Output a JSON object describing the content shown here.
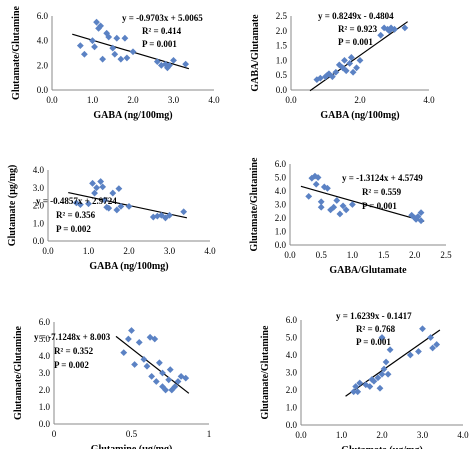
{
  "chart_data": [
    {
      "type": "scatter",
      "xlabel": "GABA (ng/100mg)",
      "ylabel": "Glutamate/Glutamine",
      "xlim": [
        0.0,
        4.0
      ],
      "ylim": [
        0.0,
        6.0
      ],
      "xticks": [
        "0.0",
        "1.0",
        "2.0",
        "3.0",
        "4.0"
      ],
      "yticks": [
        "0.0",
        "2.0",
        "4.0",
        "6.0"
      ],
      "annotations": [
        "y = -0.9703x + 5.0065",
        "R² = 0.414",
        "P = 0.001"
      ],
      "trendline": {
        "slope": -0.9703,
        "intercept": 5.0065
      },
      "marker_color": "#5b82c4",
      "grid": false,
      "points": [
        [
          0.7,
          3.6
        ],
        [
          0.8,
          2.9
        ],
        [
          1.0,
          4.0
        ],
        [
          1.05,
          3.5
        ],
        [
          1.1,
          5.5
        ],
        [
          1.15,
          5.0
        ],
        [
          1.2,
          5.2
        ],
        [
          1.25,
          2.5
        ],
        [
          1.35,
          4.6
        ],
        [
          1.4,
          4.3
        ],
        [
          1.5,
          3.4
        ],
        [
          1.55,
          2.9
        ],
        [
          1.6,
          4.2
        ],
        [
          1.7,
          2.5
        ],
        [
          1.8,
          4.2
        ],
        [
          1.85,
          2.6
        ],
        [
          2.0,
          3.1
        ],
        [
          2.6,
          2.3
        ],
        [
          2.7,
          2.0
        ],
        [
          2.8,
          2.1
        ],
        [
          2.85,
          1.8
        ],
        [
          2.9,
          2.0
        ],
        [
          3.0,
          2.4
        ],
        [
          3.3,
          2.1
        ]
      ]
    },
    {
      "type": "scatter",
      "xlabel": "GABA (ng/100mg)",
      "ylabel": "GABA/Glutamate",
      "xlim": [
        0.0,
        4.0
      ],
      "ylim": [
        0.0,
        2.5
      ],
      "xticks": [
        "0.0",
        "2.0",
        "4.0"
      ],
      "yticks": [
        "0.0",
        "0.5",
        "1.0",
        "1.5",
        "2.0",
        "2.5"
      ],
      "annotations": [
        "y = 0.8249x - 0.4804",
        "R² = 0.923",
        "P = 0.001"
      ],
      "trendline": {
        "slope": 0.8249,
        "intercept": -0.4804
      },
      "marker_color": "#5b82c4",
      "grid": false,
      "points": [
        [
          0.75,
          0.35
        ],
        [
          0.85,
          0.4
        ],
        [
          1.0,
          0.45
        ],
        [
          1.05,
          0.5
        ],
        [
          1.1,
          0.55
        ],
        [
          1.2,
          0.45
        ],
        [
          1.3,
          0.6
        ],
        [
          1.4,
          0.85
        ],
        [
          1.5,
          0.75
        ],
        [
          1.55,
          1.0
        ],
        [
          1.6,
          0.65
        ],
        [
          1.7,
          0.9
        ],
        [
          1.75,
          1.1
        ],
        [
          1.8,
          0.6
        ],
        [
          1.9,
          0.75
        ],
        [
          2.0,
          1.0
        ],
        [
          2.6,
          1.85
        ],
        [
          2.7,
          2.1
        ],
        [
          2.8,
          2.05
        ],
        [
          2.85,
          2.0
        ],
        [
          2.9,
          2.1
        ],
        [
          3.0,
          2.05
        ],
        [
          3.3,
          2.1
        ]
      ]
    },
    {
      "type": "scatter",
      "xlabel": "GABA (ng/100mg)",
      "ylabel": "Glutamate (µg/mg)",
      "xlim": [
        0.0,
        4.0
      ],
      "ylim": [
        0.0,
        4.0
      ],
      "xticks": [
        "0.0",
        "1.0",
        "2.0",
        "3.0",
        "4.0"
      ],
      "yticks": [
        "0.0",
        "1.0",
        "2.0",
        "3.0",
        "4.0"
      ],
      "annotations": [
        "y = -0.4857x + 2.9724",
        "R² = 0.356",
        "P = 0.002"
      ],
      "trendline": {
        "slope": -0.4857,
        "intercept": 2.9724
      },
      "marker_color": "#5b82c4",
      "grid": false,
      "points": [
        [
          0.7,
          2.15
        ],
        [
          0.8,
          2.05
        ],
        [
          1.0,
          2.1
        ],
        [
          1.1,
          3.25
        ],
        [
          1.15,
          2.7
        ],
        [
          1.2,
          3.0
        ],
        [
          1.3,
          3.35
        ],
        [
          1.35,
          3.05
        ],
        [
          1.4,
          2.3
        ],
        [
          1.45,
          1.9
        ],
        [
          1.5,
          1.85
        ],
        [
          1.6,
          2.7
        ],
        [
          1.7,
          1.75
        ],
        [
          1.75,
          2.95
        ],
        [
          1.8,
          1.95
        ],
        [
          2.0,
          1.95
        ],
        [
          2.6,
          1.35
        ],
        [
          2.7,
          1.4
        ],
        [
          2.8,
          1.45
        ],
        [
          2.9,
          1.3
        ],
        [
          3.0,
          1.45
        ],
        [
          3.35,
          1.65
        ]
      ]
    },
    {
      "type": "scatter",
      "xlabel": "GABA/Glutamate",
      "ylabel": "Glutamate/Glutamine",
      "xlim": [
        0.0,
        2.5
      ],
      "ylim": [
        0.0,
        6.0
      ],
      "xticks": [
        "0.0",
        "0.5",
        "1.0",
        "1.5",
        "2.0",
        "2.5"
      ],
      "yticks": [
        "0.0",
        "1.0",
        "2.0",
        "3.0",
        "4.0",
        "5.0",
        "6.0"
      ],
      "annotations": [
        "y = -1.3124x + 4.5749",
        "R² = 0.559",
        "P = 0.001"
      ],
      "trendline": {
        "slope": -1.3124,
        "intercept": 4.5749
      },
      "marker_color": "#5b82c4",
      "grid": false,
      "points": [
        [
          0.3,
          3.6
        ],
        [
          0.35,
          4.95
        ],
        [
          0.4,
          5.1
        ],
        [
          0.42,
          4.5
        ],
        [
          0.45,
          5.0
        ],
        [
          0.5,
          3.2
        ],
        [
          0.5,
          2.8
        ],
        [
          0.55,
          4.3
        ],
        [
          0.6,
          4.2
        ],
        [
          0.65,
          2.6
        ],
        [
          0.7,
          2.8
        ],
        [
          0.75,
          3.3
        ],
        [
          0.8,
          2.3
        ],
        [
          0.85,
          2.9
        ],
        [
          0.9,
          2.6
        ],
        [
          1.0,
          3.0
        ],
        [
          1.95,
          2.2
        ],
        [
          2.0,
          2.0
        ],
        [
          2.02,
          1.9
        ],
        [
          2.05,
          2.1
        ],
        [
          2.1,
          1.8
        ],
        [
          2.1,
          2.4
        ]
      ]
    },
    {
      "type": "scatter",
      "xlabel": "Glutamine (µg/mg)",
      "ylabel": "Glutamate/Glutamine",
      "xlim": [
        0.0,
        1.0
      ],
      "ylim": [
        0.0,
        6.0
      ],
      "xticks": [
        "0",
        "0.5",
        "1"
      ],
      "yticks": [
        "0.0",
        "1.0",
        "2.0",
        "3.0",
        "4.0",
        "5.0",
        "6.0"
      ],
      "annotations": [
        "y = -7.1248x + 8.003",
        "R² = 0.352",
        "P = 0.002"
      ],
      "trendline": {
        "slope": -7.1248,
        "intercept": 8.003
      },
      "marker_color": "#5b82c4",
      "grid": false,
      "points": [
        [
          0.45,
          4.2
        ],
        [
          0.48,
          5.0
        ],
        [
          0.5,
          5.5
        ],
        [
          0.52,
          3.5
        ],
        [
          0.55,
          4.8
        ],
        [
          0.58,
          3.8
        ],
        [
          0.6,
          3.4
        ],
        [
          0.62,
          5.1
        ],
        [
          0.63,
          2.8
        ],
        [
          0.65,
          5.0
        ],
        [
          0.66,
          2.5
        ],
        [
          0.68,
          3.6
        ],
        [
          0.7,
          2.2
        ],
        [
          0.7,
          3.0
        ],
        [
          0.72,
          2.0
        ],
        [
          0.74,
          2.6
        ],
        [
          0.75,
          3.2
        ],
        [
          0.76,
          2.0
        ],
        [
          0.78,
          2.2
        ],
        [
          0.8,
          2.5
        ],
        [
          0.82,
          2.8
        ],
        [
          0.85,
          2.7
        ]
      ]
    },
    {
      "type": "scatter",
      "xlabel": "Glutamate (µg/mg)",
      "ylabel": "Glutamate/Glutamine",
      "xlim": [
        0.0,
        4.0
      ],
      "ylim": [
        0.0,
        6.0
      ],
      "xticks": [
        "0.0",
        "1.0",
        "2.0",
        "3.0",
        "4.0"
      ],
      "yticks": [
        "0.0",
        "1.0",
        "2.0",
        "3.0",
        "4.0",
        "5.0",
        "6.0"
      ],
      "annotations": [
        "y = 1.6239x - 0.1417",
        "R² = 0.768",
        "P = 0.001"
      ],
      "trendline": {
        "slope": 1.6239,
        "intercept": -0.1417
      },
      "marker_color": "#5b82c4",
      "grid": false,
      "points": [
        [
          1.3,
          1.9
        ],
        [
          1.35,
          2.2
        ],
        [
          1.4,
          1.9
        ],
        [
          1.45,
          2.4
        ],
        [
          1.6,
          2.3
        ],
        [
          1.7,
          2.2
        ],
        [
          1.75,
          2.6
        ],
        [
          1.8,
          2.5
        ],
        [
          1.9,
          2.7
        ],
        [
          1.95,
          2.1
        ],
        [
          2.0,
          2.9
        ],
        [
          2.05,
          3.2
        ],
        [
          2.1,
          3.6
        ],
        [
          2.15,
          2.9
        ],
        [
          2.2,
          4.3
        ],
        [
          2.0,
          5.0
        ],
        [
          2.9,
          4.2
        ],
        [
          3.0,
          5.5
        ],
        [
          3.2,
          5.0
        ],
        [
          3.25,
          4.4
        ],
        [
          3.35,
          4.6
        ],
        [
          2.7,
          4.0
        ]
      ]
    }
  ]
}
